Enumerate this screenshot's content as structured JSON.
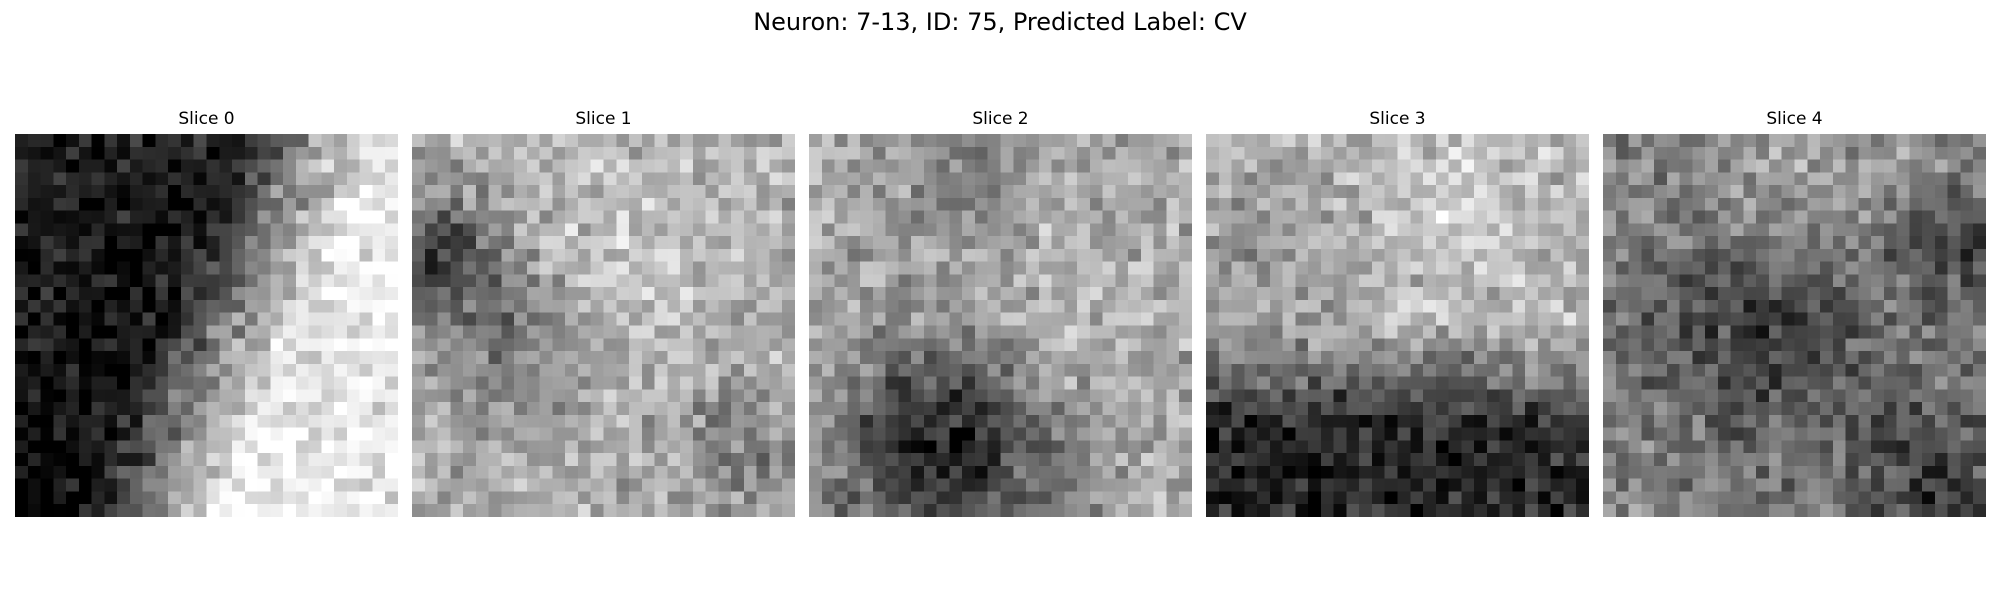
{
  "figure": {
    "title": "Neuron: 7-13, ID: 75, Predicted Label: CV"
  },
  "slices": [
    {
      "label": "Slice 0",
      "pattern": "dark-upper-left-bright-lower-right"
    },
    {
      "label": "Slice 1",
      "pattern": "light-noisy-with-dark-left-patch"
    },
    {
      "label": "Slice 2",
      "pattern": "light-top-dark-bottom-left"
    },
    {
      "label": "Slice 3",
      "pattern": "light-top-dark-lower-band"
    },
    {
      "label": "Slice 4",
      "pattern": "mid-gray-noisy-dark-center"
    }
  ],
  "colormap": "grayscale"
}
